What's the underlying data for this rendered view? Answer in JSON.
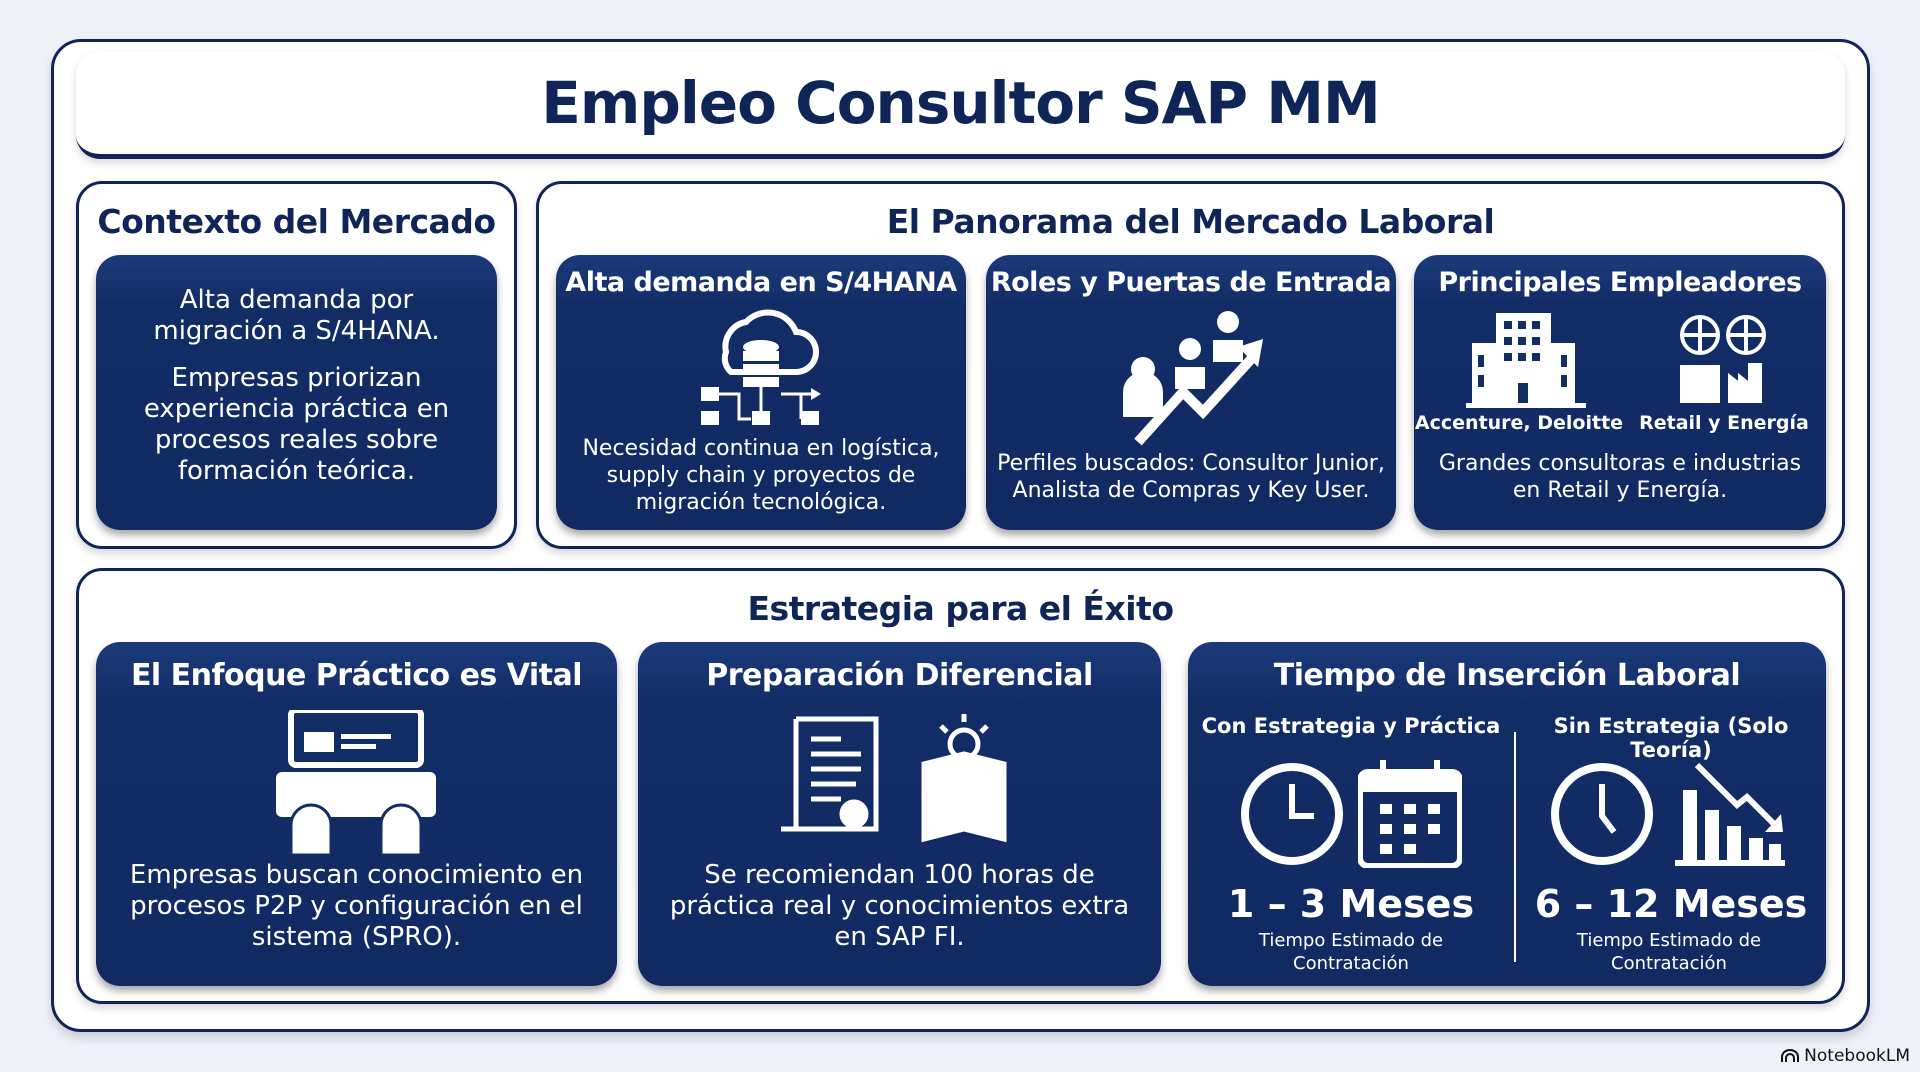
{
  "title": "Empleo Consultor SAP MM",
  "contexto": {
    "heading": "Contexto del Mercado",
    "p1": "Alta demanda por migración a S/4HANA.",
    "p2": "Empresas priorizan experiencia práctica en procesos reales sobre formación teórica."
  },
  "panorama": {
    "heading": "El Panorama del Mercado Laboral",
    "cards": [
      {
        "title": "Alta demanda en S/4HANA",
        "text": "Necesidad continua en logística, supply chain y proyectos de migración tecnológica.",
        "icon": "cloud-database-network-icon"
      },
      {
        "title": "Roles y Puertas de Entrada",
        "text": "Perfiles buscados: Consultor Junior, Analista de Compras y Key User.",
        "icon": "people-growth-arrow-icon"
      },
      {
        "title": "Principales Empleadores",
        "label_left": "Accenture, Deloitte",
        "label_right": "Retail y Energía",
        "text": "Grandes consultoras e industrias en Retail y Energía.",
        "icon": "building-globe-factory-icon"
      }
    ]
  },
  "estrategia": {
    "heading": "Estrategia para el Éxito",
    "cards": [
      {
        "title": "El Enfoque Práctico es Vital",
        "text": "Empresas buscan conocimiento en procesos P2P y configuración en el sistema (SPRO).",
        "icon": "keyboard-screen-icon"
      },
      {
        "title": "Preparación Diferencial",
        "text": "Se recomiendan 100 horas de práctica real y conocimientos extra en SAP FI.",
        "icon": "certificate-book-icon"
      },
      {
        "title": "Tiempo de Inserción Laboral",
        "left": {
          "label": "Con Estrategia y Práctica",
          "value": "1 – 3 Meses",
          "caption": "Tiempo Estimado de Contratación"
        },
        "right": {
          "label": "Sin Estrategia (Solo Teoría)",
          "value": "6 – 12 Meses",
          "caption": "Tiempo Estimado de Contratación"
        }
      }
    ]
  },
  "watermark": "NotebookLM",
  "colors": {
    "navy": "#0f2457",
    "card": "#122c66",
    "background": "#eef2f8"
  }
}
